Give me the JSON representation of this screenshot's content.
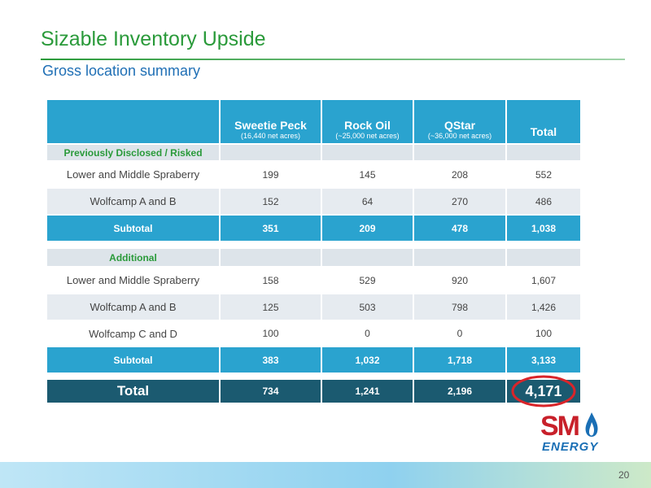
{
  "header": {
    "title": "Sizable Inventory Upside",
    "subtitle": "Gross location summary"
  },
  "table": {
    "columns": [
      {
        "name": "Sweetie Peck",
        "note": "(16,440 net acres)"
      },
      {
        "name": "Rock Oil",
        "note": "(~25,000 net acres)"
      },
      {
        "name": "QStar",
        "note": "(~36,000 net acres)"
      },
      {
        "name": "Total"
      }
    ],
    "sections": [
      {
        "label": "Previously Disclosed / Risked",
        "rows": [
          {
            "label": "Lower and Middle Spraberry",
            "cells": [
              "199",
              "145",
              "208",
              "552"
            ]
          },
          {
            "label": "Wolfcamp A and B",
            "cells": [
              "152",
              "64",
              "270",
              "486"
            ]
          }
        ],
        "subtotal": {
          "label": "Subtotal",
          "cells": [
            "351",
            "209",
            "478",
            "1,038"
          ]
        }
      },
      {
        "label": "Additional",
        "rows": [
          {
            "label": "Lower and Middle Spraberry",
            "cells": [
              "158",
              "529",
              "920",
              "1,607"
            ]
          },
          {
            "label": "Wolfcamp A and B",
            "cells": [
              "125",
              "503",
              "798",
              "1,426"
            ]
          },
          {
            "label": "Wolfcamp C and D",
            "cells": [
              "100",
              "0",
              "0",
              "100"
            ]
          }
        ],
        "subtotal": {
          "label": "Subtotal",
          "cells": [
            "383",
            "1,032",
            "1,718",
            "3,133"
          ]
        }
      }
    ],
    "total": {
      "label": "Total",
      "cells": [
        "734",
        "1,241",
        "2,196",
        "4,171"
      ]
    }
  },
  "logo": {
    "brand": "SM",
    "tagline": "ENERGY"
  },
  "page_number": "20"
}
